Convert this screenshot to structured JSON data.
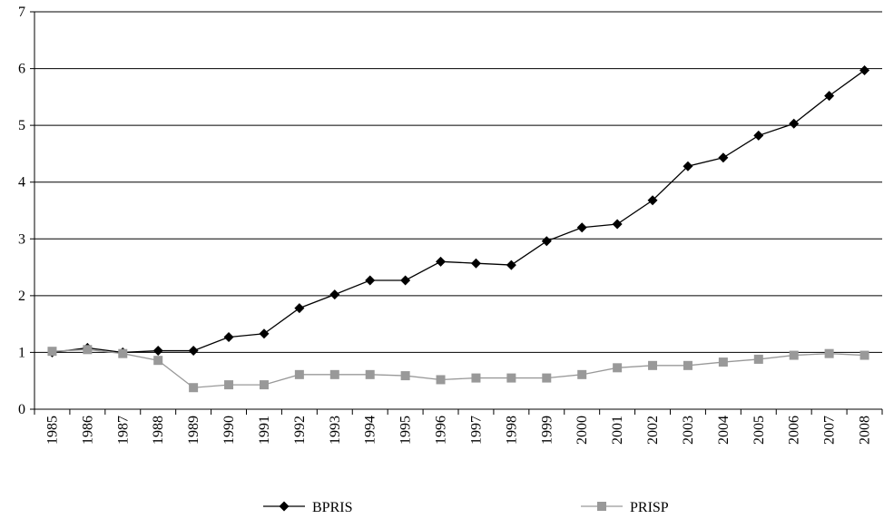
{
  "chart_data": {
    "type": "line",
    "categories": [
      "1985",
      "1986",
      "1987",
      "1988",
      "1989",
      "1990",
      "1991",
      "1992",
      "1993",
      "1994",
      "1995",
      "1996",
      "1997",
      "1998",
      "1999",
      "2000",
      "2001",
      "2002",
      "2003",
      "2004",
      "2005",
      "2006",
      "2007",
      "2008"
    ],
    "series": [
      {
        "name": "BPRIS",
        "color": "#000000",
        "marker": "diamond",
        "values": [
          1.0,
          1.08,
          1.0,
          1.03,
          1.03,
          1.27,
          1.33,
          1.78,
          2.02,
          2.27,
          2.27,
          2.6,
          2.57,
          2.54,
          2.96,
          3.2,
          3.26,
          3.68,
          4.28,
          4.43,
          4.82,
          5.03,
          5.52,
          5.97
        ]
      },
      {
        "name": "PRISP",
        "color": "#999999",
        "marker": "square",
        "values": [
          1.02,
          1.05,
          0.98,
          0.86,
          0.38,
          0.43,
          0.43,
          0.61,
          0.61,
          0.61,
          0.59,
          0.52,
          0.55,
          0.55,
          0.55,
          0.61,
          0.73,
          0.77,
          0.77,
          0.83,
          0.88,
          0.95,
          0.98,
          0.95
        ]
      }
    ],
    "ylim": [
      0,
      7
    ],
    "yticks": [
      0,
      1,
      2,
      3,
      4,
      5,
      6,
      7
    ],
    "grid": true,
    "legend": "bottom"
  }
}
